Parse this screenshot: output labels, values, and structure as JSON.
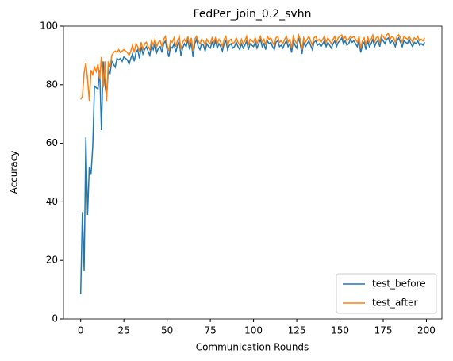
{
  "chart_data": {
    "type": "line",
    "title": "FedPer_join_0.2_svhn",
    "xlabel": "Communication Rounds",
    "ylabel": "Accuracy",
    "x": [
      0,
      1,
      2,
      3,
      4,
      5,
      6,
      7,
      8,
      9,
      10,
      11,
      12,
      13,
      14,
      15,
      16,
      17,
      18,
      19,
      20,
      21,
      22,
      23,
      24,
      25,
      26,
      27,
      28,
      29,
      30,
      31,
      32,
      33,
      34,
      35,
      36,
      37,
      38,
      39,
      40,
      41,
      42,
      43,
      44,
      45,
      46,
      47,
      48,
      49,
      50,
      51,
      52,
      53,
      54,
      55,
      56,
      57,
      58,
      59,
      60,
      61,
      62,
      63,
      64,
      65,
      66,
      67,
      68,
      69,
      70,
      71,
      72,
      73,
      74,
      75,
      76,
      77,
      78,
      79,
      80,
      81,
      82,
      83,
      84,
      85,
      86,
      87,
      88,
      89,
      90,
      91,
      92,
      93,
      94,
      95,
      96,
      97,
      98,
      99,
      100,
      101,
      102,
      103,
      104,
      105,
      106,
      107,
      108,
      109,
      110,
      111,
      112,
      113,
      114,
      115,
      116,
      117,
      118,
      119,
      120,
      121,
      122,
      123,
      124,
      125,
      126,
      127,
      128,
      129,
      130,
      131,
      132,
      133,
      134,
      135,
      136,
      137,
      138,
      139,
      140,
      141,
      142,
      143,
      144,
      145,
      146,
      147,
      148,
      149,
      150,
      151,
      152,
      153,
      154,
      155,
      156,
      157,
      158,
      159,
      160,
      161,
      162,
      163,
      164,
      165,
      166,
      167,
      168,
      169,
      170,
      171,
      172,
      173,
      174,
      175,
      176,
      177,
      178,
      179,
      180,
      181,
      182,
      183,
      184,
      185,
      186,
      187,
      188,
      189,
      190,
      191,
      192,
      193,
      194,
      195,
      196,
      197,
      198,
      199
    ],
    "series": [
      {
        "name": "test_before",
        "color": "#1f77b4",
        "values": [
          8.5,
          36.5,
          16.5,
          62,
          35.5,
          52,
          49.5,
          59,
          79.5,
          79,
          78.5,
          85,
          64.5,
          88,
          80,
          76,
          85,
          84,
          88,
          87,
          86,
          89,
          88.5,
          89,
          88,
          89.5,
          89,
          88.5,
          87,
          89,
          90.5,
          88,
          91,
          92,
          89,
          93,
          90.5,
          92,
          93,
          91.5,
          90,
          93.5,
          92,
          94,
          91,
          92.5,
          93,
          91,
          94,
          95,
          92,
          89.5,
          93,
          92.5,
          94,
          91,
          93.5,
          95,
          90,
          92.5,
          94,
          93,
          95.5,
          92,
          94.5,
          89.5,
          94,
          95.5,
          93,
          92,
          94,
          93.5,
          91.5,
          94,
          93,
          92.5,
          94.5,
          93,
          95,
          92.5,
          94,
          93,
          91.5,
          94,
          95,
          92,
          93.5,
          94,
          92.5,
          93,
          94.5,
          93,
          92,
          94,
          92.5,
          93.5,
          95,
          92,
          94,
          93.5,
          93,
          94.5,
          92.5,
          94,
          95.5,
          93,
          94,
          92,
          95,
          94,
          94.5,
          93,
          92,
          94.5,
          95,
          93,
          93.5,
          92.5,
          94,
          95,
          93,
          94,
          91,
          95,
          93.5,
          92.5,
          96,
          94,
          90.5,
          94.5,
          93,
          94,
          95,
          93.5,
          92,
          94.5,
          95,
          93.5,
          94,
          93,
          94,
          95,
          93,
          94.5,
          93.5,
          92.5,
          94,
          95,
          93,
          94.5,
          95,
          96,
          94,
          95,
          93.5,
          94,
          95.5,
          94.5,
          95,
          94,
          93,
          95,
          91,
          93.5,
          94.5,
          92,
          95,
          93,
          94,
          95.5,
          93,
          94.5,
          95,
          93,
          96,
          95,
          94,
          95.5,
          96,
          94,
          95,
          94.5,
          93,
          95,
          96,
          94.5,
          93,
          95,
          94.5,
          94,
          95.5,
          94,
          93,
          94.5,
          94,
          95,
          93.5,
          94,
          93.5,
          94.5
        ]
      },
      {
        "name": "test_after",
        "color": "#ff7f0e",
        "values": [
          75,
          76,
          84,
          87.5,
          82,
          74.5,
          85,
          83.5,
          86,
          84.5,
          87,
          82,
          89.5,
          79,
          88,
          74.5,
          88,
          86,
          90,
          91,
          91.5,
          91,
          92,
          91,
          91.5,
          92,
          91.5,
          91,
          90,
          91.5,
          93.5,
          91,
          94,
          93,
          91.5,
          94.5,
          92,
          94,
          94.5,
          93,
          92,
          95,
          93.5,
          95.5,
          93,
          94.5,
          95,
          93,
          95.5,
          96.5,
          93.5,
          91.5,
          95,
          94.5,
          96,
          93,
          95,
          96.5,
          92,
          94.5,
          95.5,
          94.5,
          96.5,
          93.5,
          96,
          91.5,
          95.5,
          96.5,
          95,
          94,
          95.5,
          95,
          93.5,
          95.5,
          94.5,
          94,
          96,
          94.5,
          96,
          94,
          95.5,
          94.5,
          93,
          95.5,
          96.5,
          93.5,
          95,
          95.5,
          94,
          94.5,
          96,
          94.5,
          93.5,
          95.5,
          94,
          95,
          96.5,
          93.5,
          95.5,
          95,
          94.5,
          96,
          94,
          95.5,
          96.5,
          94.5,
          95.5,
          93.5,
          96.5,
          95.5,
          96,
          94.5,
          93.5,
          96,
          96.5,
          94.5,
          95,
          94,
          95.5,
          96.5,
          94.5,
          95.5,
          92.5,
          96.5,
          95,
          94,
          97,
          95.5,
          92,
          96,
          94.5,
          95.5,
          96.5,
          95,
          93.5,
          96,
          96.5,
          95,
          95.5,
          94.5,
          95.5,
          96.5,
          94.5,
          96,
          95,
          94,
          95.5,
          96.5,
          94.5,
          96,
          96.5,
          97,
          95.5,
          96.5,
          95,
          95.5,
          96.5,
          96,
          96.5,
          95.5,
          94.5,
          96.5,
          92.5,
          95,
          96,
          93.5,
          96.5,
          94.5,
          95.5,
          97,
          94.5,
          96,
          96.5,
          94.5,
          97,
          96.5,
          95.5,
          97,
          97.5,
          95.5,
          96.5,
          96,
          94.5,
          96.5,
          97,
          96,
          94.5,
          96.5,
          96,
          95.5,
          96.5,
          95.5,
          94.5,
          96,
          95.5,
          96.5,
          95,
          95.5,
          95,
          96
        ]
      }
    ],
    "xlim": [
      -9.95,
      208.95
    ],
    "ylim": [
      0,
      100
    ],
    "xticks": [
      0,
      25,
      50,
      75,
      100,
      125,
      150,
      175,
      200
    ],
    "yticks": [
      0,
      20,
      40,
      60,
      80,
      100
    ],
    "legend": "lower right"
  }
}
